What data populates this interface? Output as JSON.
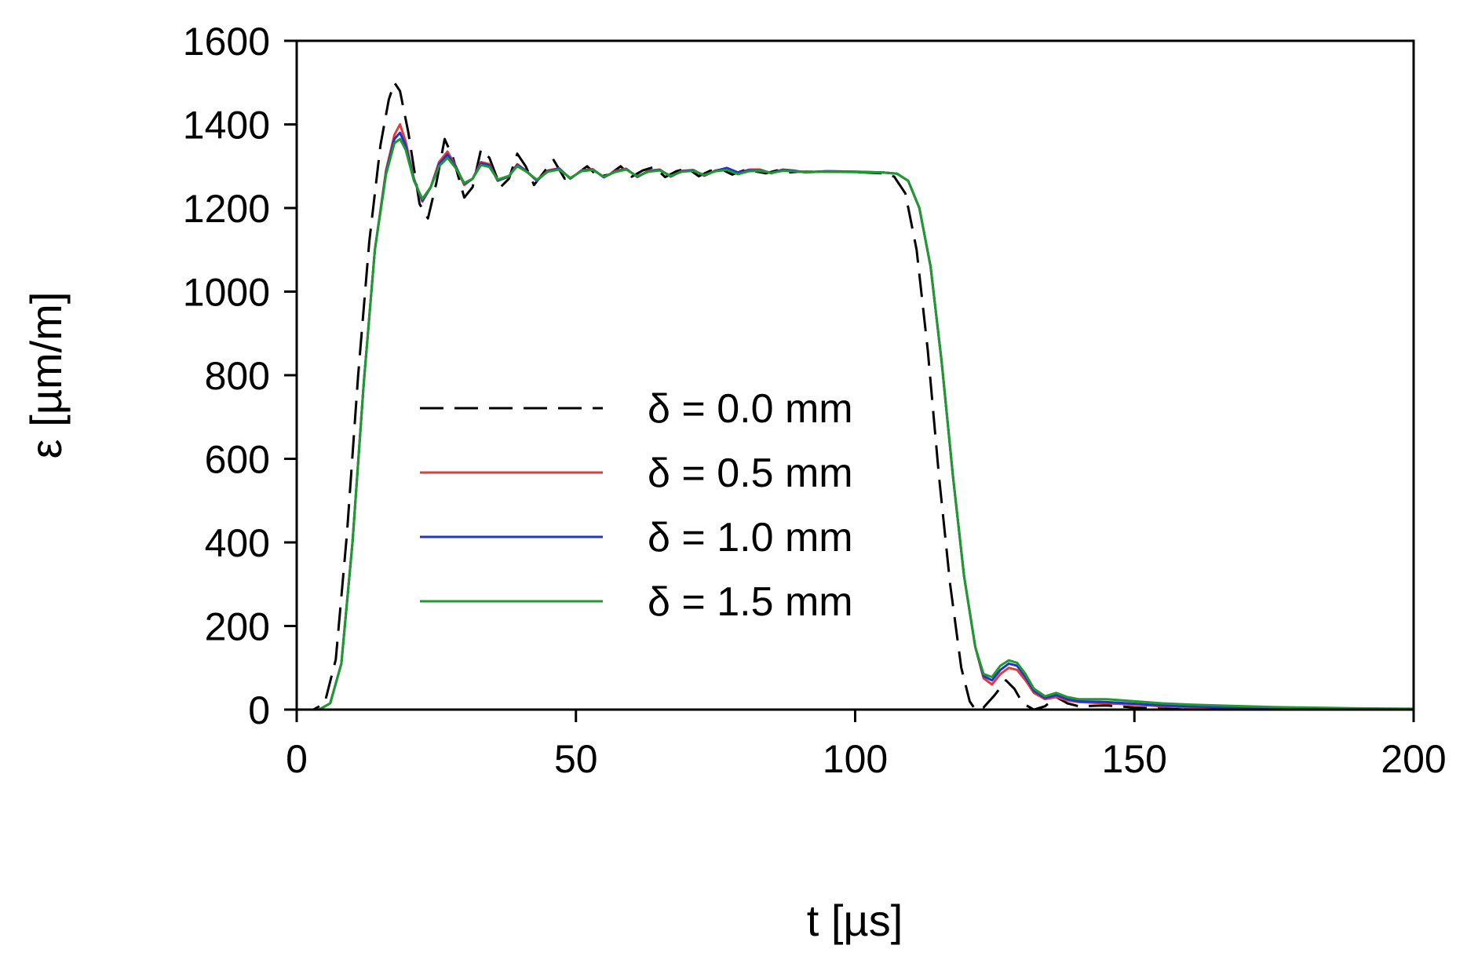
{
  "chart_data": {
    "type": "line",
    "title": "",
    "xlabel": "t [µs]",
    "ylabel": "ε [µm/m]",
    "xlim": [
      0,
      200
    ],
    "ylim": [
      0,
      1600
    ],
    "xticks": [
      0,
      50,
      100,
      150,
      200
    ],
    "yticks": [
      0,
      200,
      400,
      600,
      800,
      1000,
      1200,
      1400,
      1600
    ],
    "grid": false,
    "legend_position": "center-left",
    "series": [
      {
        "name": "δ = 0.0 mm",
        "color": "#000000",
        "style": "dashed",
        "points": [
          [
            0,
            0
          ],
          [
            3,
            0
          ],
          [
            5,
            15
          ],
          [
            7,
            120
          ],
          [
            9,
            420
          ],
          [
            11,
            800
          ],
          [
            13,
            1120
          ],
          [
            15,
            1350
          ],
          [
            16.5,
            1460
          ],
          [
            17.5,
            1500
          ],
          [
            18.5,
            1480
          ],
          [
            20,
            1380
          ],
          [
            22,
            1210
          ],
          [
            23.5,
            1175
          ],
          [
            25,
            1260
          ],
          [
            26.5,
            1365
          ],
          [
            28,
            1320
          ],
          [
            30,
            1225
          ],
          [
            31.5,
            1250
          ],
          [
            33,
            1340
          ],
          [
            34.5,
            1320
          ],
          [
            36.5,
            1250
          ],
          [
            38,
            1270
          ],
          [
            39.5,
            1330
          ],
          [
            41,
            1300
          ],
          [
            42.5,
            1255
          ],
          [
            44.5,
            1290
          ],
          [
            46,
            1315
          ],
          [
            48,
            1270
          ],
          [
            50,
            1280
          ],
          [
            52,
            1300
          ],
          [
            54,
            1275
          ],
          [
            56,
            1280
          ],
          [
            58,
            1300
          ],
          [
            60,
            1275
          ],
          [
            62,
            1290
          ],
          [
            64,
            1298
          ],
          [
            66,
            1274
          ],
          [
            68,
            1288
          ],
          [
            70,
            1295
          ],
          [
            72,
            1276
          ],
          [
            74,
            1289
          ],
          [
            76,
            1293
          ],
          [
            78,
            1280
          ],
          [
            80,
            1290
          ],
          [
            82,
            1288
          ],
          [
            84,
            1283
          ],
          [
            86,
            1290
          ],
          [
            88,
            1285
          ],
          [
            90,
            1287
          ],
          [
            95,
            1287
          ],
          [
            100,
            1286
          ],
          [
            105,
            1283
          ],
          [
            107,
            1275
          ],
          [
            109,
            1235
          ],
          [
            111,
            1100
          ],
          [
            113,
            860
          ],
          [
            115,
            560
          ],
          [
            117,
            300
          ],
          [
            119,
            100
          ],
          [
            120.5,
            20
          ],
          [
            121.5,
            0
          ],
          [
            123,
            5
          ],
          [
            125,
            35
          ],
          [
            127,
            70
          ],
          [
            128.5,
            50
          ],
          [
            130,
            15
          ],
          [
            132,
            0
          ],
          [
            134,
            8
          ],
          [
            136,
            30
          ],
          [
            138,
            15
          ],
          [
            140,
            8
          ],
          [
            145,
            10
          ],
          [
            150,
            5
          ],
          [
            155,
            2
          ],
          [
            160,
            0
          ],
          [
            200,
            0
          ]
        ]
      },
      {
        "name": "δ = 0.5 mm",
        "color": "#e23b3b",
        "style": "solid",
        "points": [
          [
            0,
            0
          ],
          [
            4,
            0
          ],
          [
            6,
            15
          ],
          [
            8,
            110
          ],
          [
            10,
            400
          ],
          [
            12,
            780
          ],
          [
            14,
            1100
          ],
          [
            16,
            1290
          ],
          [
            17.5,
            1375
          ],
          [
            18.5,
            1400
          ],
          [
            19.5,
            1360
          ],
          [
            21,
            1270
          ],
          [
            22.5,
            1215
          ],
          [
            24,
            1250
          ],
          [
            25.5,
            1310
          ],
          [
            27,
            1335
          ],
          [
            28.5,
            1300
          ],
          [
            30,
            1255
          ],
          [
            31.5,
            1270
          ],
          [
            33,
            1310
          ],
          [
            34.5,
            1305
          ],
          [
            36,
            1265
          ],
          [
            38,
            1275
          ],
          [
            39.5,
            1305
          ],
          [
            41,
            1290
          ],
          [
            43,
            1265
          ],
          [
            45,
            1290
          ],
          [
            47,
            1295
          ],
          [
            49,
            1270
          ],
          [
            51,
            1290
          ],
          [
            53,
            1293
          ],
          [
            55,
            1273
          ],
          [
            57,
            1288
          ],
          [
            59,
            1294
          ],
          [
            61,
            1274
          ],
          [
            63,
            1289
          ],
          [
            65,
            1292
          ],
          [
            67,
            1275
          ],
          [
            69,
            1289
          ],
          [
            71,
            1291
          ],
          [
            73,
            1277
          ],
          [
            75,
            1290
          ],
          [
            77,
            1293
          ],
          [
            79,
            1283
          ],
          [
            81,
            1292
          ],
          [
            83,
            1292
          ],
          [
            85,
            1283
          ],
          [
            87,
            1292
          ],
          [
            89,
            1290
          ],
          [
            91,
            1285
          ],
          [
            95,
            1288
          ],
          [
            100,
            1287
          ],
          [
            105,
            1285
          ],
          [
            107.5,
            1282
          ],
          [
            109.5,
            1265
          ],
          [
            111.5,
            1200
          ],
          [
            113.5,
            1060
          ],
          [
            115.5,
            830
          ],
          [
            117.5,
            560
          ],
          [
            119.5,
            320
          ],
          [
            121.5,
            150
          ],
          [
            123,
            75
          ],
          [
            124.5,
            60
          ],
          [
            126,
            85
          ],
          [
            127.5,
            100
          ],
          [
            129,
            95
          ],
          [
            130.5,
            70
          ],
          [
            132,
            40
          ],
          [
            134,
            25
          ],
          [
            136,
            30
          ],
          [
            138,
            22
          ],
          [
            140,
            18
          ],
          [
            145,
            15
          ],
          [
            150,
            12
          ],
          [
            155,
            8
          ],
          [
            160,
            5
          ],
          [
            165,
            3
          ],
          [
            175,
            2
          ],
          [
            200,
            0
          ]
        ]
      },
      {
        "name": "δ = 1.0 mm",
        "color": "#2233cc",
        "style": "solid",
        "points": [
          [
            0,
            0
          ],
          [
            4,
            0
          ],
          [
            6,
            15
          ],
          [
            8,
            110
          ],
          [
            10,
            400
          ],
          [
            12,
            780
          ],
          [
            14,
            1100
          ],
          [
            16,
            1285
          ],
          [
            17.5,
            1365
          ],
          [
            18.5,
            1380
          ],
          [
            19.5,
            1350
          ],
          [
            21,
            1268
          ],
          [
            22.5,
            1218
          ],
          [
            24,
            1250
          ],
          [
            25.5,
            1305
          ],
          [
            27,
            1328
          ],
          [
            28.5,
            1298
          ],
          [
            30,
            1258
          ],
          [
            31.5,
            1270
          ],
          [
            33,
            1307
          ],
          [
            34.5,
            1302
          ],
          [
            36,
            1266
          ],
          [
            38,
            1276
          ],
          [
            39.5,
            1303
          ],
          [
            41,
            1290
          ],
          [
            43,
            1266
          ],
          [
            45,
            1288
          ],
          [
            47,
            1294
          ],
          [
            49,
            1271
          ],
          [
            51,
            1289
          ],
          [
            53,
            1292
          ],
          [
            55,
            1274
          ],
          [
            57,
            1287
          ],
          [
            59,
            1293
          ],
          [
            61,
            1275
          ],
          [
            63,
            1288
          ],
          [
            65,
            1291
          ],
          [
            67,
            1276
          ],
          [
            69,
            1288
          ],
          [
            71,
            1290
          ],
          [
            73,
            1278
          ],
          [
            75,
            1289
          ],
          [
            77,
            1296
          ],
          [
            79,
            1285
          ],
          [
            81,
            1290
          ],
          [
            83,
            1290
          ],
          [
            85,
            1284
          ],
          [
            87,
            1291
          ],
          [
            89,
            1289
          ],
          [
            91,
            1286
          ],
          [
            95,
            1288
          ],
          [
            100,
            1287
          ],
          [
            105,
            1285
          ],
          [
            107.5,
            1282
          ],
          [
            109.5,
            1265
          ],
          [
            111.5,
            1200
          ],
          [
            113.5,
            1060
          ],
          [
            115.5,
            830
          ],
          [
            117.5,
            560
          ],
          [
            119.5,
            320
          ],
          [
            121.5,
            150
          ],
          [
            123,
            80
          ],
          [
            124.5,
            70
          ],
          [
            126,
            95
          ],
          [
            127.5,
            110
          ],
          [
            129,
            105
          ],
          [
            130.5,
            78
          ],
          [
            132,
            45
          ],
          [
            134,
            28
          ],
          [
            136,
            35
          ],
          [
            138,
            25
          ],
          [
            140,
            20
          ],
          [
            145,
            18
          ],
          [
            150,
            14
          ],
          [
            155,
            10
          ],
          [
            160,
            8
          ],
          [
            165,
            5
          ],
          [
            175,
            3
          ],
          [
            200,
            0
          ]
        ]
      },
      {
        "name": "δ = 1.5 mm",
        "color": "#1e9b2e",
        "style": "solid",
        "points": [
          [
            0,
            0
          ],
          [
            4,
            0
          ],
          [
            6,
            15
          ],
          [
            8,
            110
          ],
          [
            10,
            400
          ],
          [
            12,
            780
          ],
          [
            14,
            1100
          ],
          [
            16,
            1280
          ],
          [
            17.5,
            1355
          ],
          [
            18.5,
            1365
          ],
          [
            19.5,
            1340
          ],
          [
            21,
            1265
          ],
          [
            22.5,
            1222
          ],
          [
            24,
            1250
          ],
          [
            25.5,
            1300
          ],
          [
            27,
            1320
          ],
          [
            28.5,
            1295
          ],
          [
            30,
            1260
          ],
          [
            31.5,
            1270
          ],
          [
            33,
            1303
          ],
          [
            34.5,
            1298
          ],
          [
            36,
            1268
          ],
          [
            38,
            1277
          ],
          [
            39.5,
            1300
          ],
          [
            41,
            1288
          ],
          [
            43,
            1268
          ],
          [
            45,
            1287
          ],
          [
            47,
            1292
          ],
          [
            49,
            1272
          ],
          [
            51,
            1288
          ],
          [
            53,
            1291
          ],
          [
            55,
            1275
          ],
          [
            57,
            1286
          ],
          [
            59,
            1292
          ],
          [
            61,
            1276
          ],
          [
            63,
            1287
          ],
          [
            65,
            1290
          ],
          [
            67,
            1277
          ],
          [
            69,
            1287
          ],
          [
            71,
            1289
          ],
          [
            73,
            1279
          ],
          [
            75,
            1288
          ],
          [
            77,
            1291
          ],
          [
            79,
            1281
          ],
          [
            81,
            1288
          ],
          [
            83,
            1289
          ],
          [
            85,
            1284
          ],
          [
            87,
            1289
          ],
          [
            89,
            1288
          ],
          [
            91,
            1286
          ],
          [
            95,
            1287
          ],
          [
            100,
            1286
          ],
          [
            105,
            1285
          ],
          [
            107.5,
            1282
          ],
          [
            109.5,
            1265
          ],
          [
            111.5,
            1200
          ],
          [
            113.5,
            1060
          ],
          [
            115.5,
            830
          ],
          [
            117.5,
            560
          ],
          [
            119.5,
            320
          ],
          [
            121.5,
            150
          ],
          [
            123,
            85
          ],
          [
            124.5,
            78
          ],
          [
            126,
            105
          ],
          [
            127.5,
            118
          ],
          [
            129,
            112
          ],
          [
            130.5,
            85
          ],
          [
            132,
            50
          ],
          [
            134,
            32
          ],
          [
            136,
            40
          ],
          [
            138,
            30
          ],
          [
            140,
            25
          ],
          [
            145,
            25
          ],
          [
            150,
            20
          ],
          [
            155,
            15
          ],
          [
            160,
            12
          ],
          [
            165,
            10
          ],
          [
            170,
            8
          ],
          [
            175,
            6
          ],
          [
            180,
            5
          ],
          [
            190,
            3
          ],
          [
            200,
            2
          ]
        ]
      }
    ]
  }
}
